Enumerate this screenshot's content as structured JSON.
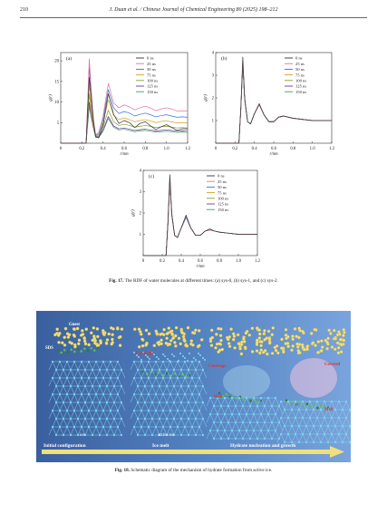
{
  "header": {
    "page_number": "210",
    "journal": "J. Duan et al. / Chinese Journal of Chemical Engineering 80 (2025) 198–212"
  },
  "legend_labels": [
    "0 ns",
    "25 ns",
    "50 ns",
    "75 ns",
    "100 ns",
    "125 ns",
    "150 ns"
  ],
  "series_colors": [
    "#333333",
    "#e0709a",
    "#3a6fd8",
    "#d4a020",
    "#8a9a3a",
    "#6a3a9a",
    "#3aa060"
  ],
  "figure17": {
    "caption_label": "Fig. 17.",
    "caption_text": "The RDF of water molecules at different times: (a) sys-0, (b) sys-1, and (c) sys-2."
  },
  "figure18": {
    "caption_label": "Fig. 18.",
    "caption_text": "Schematic diagram of the mechanism of hydrate formation from active ice.",
    "labels": {
      "guest": "Guest",
      "sds": "SDS",
      "ice": "ice",
      "active_ice": "active ice",
      "coverage": "Coverage",
      "covered": "Covered",
      "melt": "Melt",
      "stage1": "Initial configuration",
      "stage2": "Ice melt",
      "stage3": "Hydrate nucleation and growth"
    }
  },
  "chart_data": [
    {
      "type": "line",
      "panel": "(a)",
      "xlabel": "r/nm",
      "ylabel": "g(r)",
      "xlim": [
        0,
        1.2
      ],
      "ylim": [
        0,
        22
      ],
      "xticks": [
        "0",
        "0.2",
        "0.4",
        "0.6",
        "0.8",
        "1.0",
        "1.2"
      ],
      "yticks": [
        "5",
        "10",
        "15",
        "20"
      ],
      "x": [
        0,
        0.24,
        0.27,
        0.29,
        0.31,
        0.33,
        0.36,
        0.4,
        0.45,
        0.5,
        0.55,
        0.6,
        0.65,
        0.7,
        0.75,
        0.8,
        0.85,
        0.9,
        0.95,
        1.0,
        1.05,
        1.1,
        1.15,
        1.2
      ],
      "series": [
        {
          "name": "0 ns",
          "values": [
            0,
            0,
            16.0,
            10.5,
            5.2,
            1.5,
            1.3,
            4.3,
            12.0,
            7.0,
            4.8,
            5.5,
            5.0,
            3.8,
            4.8,
            5.2,
            4.2,
            3.3,
            4.0,
            4.5,
            3.8,
            3.1,
            3.5,
            3.5
          ]
        },
        {
          "name": "25 ns",
          "values": [
            0,
            0,
            20.5,
            12.5,
            5.8,
            2.1,
            2.6,
            6.5,
            14.5,
            9.8,
            8.6,
            9.3,
            8.8,
            8.1,
            8.6,
            9.0,
            8.5,
            7.9,
            8.3,
            8.6,
            8.3,
            7.8,
            7.9,
            7.8
          ]
        },
        {
          "name": "50 ns",
          "values": [
            0,
            0,
            18.5,
            11.5,
            5.5,
            1.9,
            2.2,
            5.6,
            13.0,
            8.6,
            7.2,
            7.7,
            7.3,
            6.6,
            7.0,
            7.3,
            6.9,
            6.4,
            6.7,
            6.9,
            6.6,
            6.3,
            6.4,
            6.3
          ]
        },
        {
          "name": "75 ns",
          "values": [
            0,
            0,
            14.5,
            9.0,
            4.7,
            1.8,
            1.9,
            4.8,
            10.5,
            6.8,
            5.7,
            6.1,
            5.7,
            5.2,
            5.5,
            5.7,
            5.4,
            5.0,
            5.3,
            5.4,
            5.2,
            4.9,
            5.0,
            4.9
          ]
        },
        {
          "name": "100 ns",
          "values": [
            0,
            0,
            12.0,
            7.5,
            4.2,
            1.7,
            1.7,
            3.9,
            8.0,
            5.2,
            4.3,
            4.6,
            4.3,
            3.9,
            4.1,
            4.3,
            4.1,
            3.8,
            4.0,
            4.1,
            3.9,
            3.7,
            3.8,
            3.7
          ]
        },
        {
          "name": "125 ns",
          "values": [
            0,
            0,
            10.0,
            6.5,
            3.8,
            1.6,
            1.5,
            3.2,
            6.5,
            4.2,
            3.5,
            3.7,
            3.4,
            3.1,
            3.3,
            3.4,
            3.2,
            3.0,
            3.1,
            3.2,
            3.1,
            2.9,
            3.0,
            2.9
          ]
        },
        {
          "name": "150 ns",
          "values": [
            0,
            0,
            9.0,
            6.0,
            3.5,
            1.5,
            1.4,
            2.9,
            6.0,
            3.9,
            3.2,
            3.4,
            3.1,
            2.8,
            3.0,
            3.1,
            2.9,
            2.7,
            2.8,
            2.9,
            2.8,
            2.6,
            2.7,
            2.6
          ]
        }
      ]
    },
    {
      "type": "line",
      "panel": "(b)",
      "xlabel": "r/nm",
      "ylabel": "g(r)",
      "xlim": [
        0,
        1.2
      ],
      "ylim": [
        0,
        4
      ],
      "xticks": [
        "0",
        "0.2",
        "0.4",
        "0.6",
        "0.8",
        "1.0",
        "1.2"
      ],
      "yticks": [
        "1",
        "2",
        "3",
        "4"
      ],
      "x": [
        0,
        0.24,
        0.26,
        0.28,
        0.3,
        0.33,
        0.36,
        0.4,
        0.45,
        0.5,
        0.55,
        0.6,
        0.65,
        0.7,
        0.75,
        0.8,
        0.9,
        1.0,
        1.1,
        1.2
      ],
      "series": [
        {
          "name": "0 ns",
          "values": [
            0,
            0,
            1.6,
            3.8,
            2.0,
            0.95,
            0.85,
            1.3,
            1.75,
            1.25,
            0.95,
            0.95,
            1.15,
            1.2,
            1.15,
            1.1,
            1.05,
            1.0,
            1.0,
            1.0
          ]
        },
        {
          "name": "25 ns",
          "values": [
            0,
            0,
            1.5,
            3.6,
            1.95,
            0.95,
            0.85,
            1.3,
            1.7,
            1.25,
            0.95,
            0.95,
            1.15,
            1.2,
            1.15,
            1.1,
            1.05,
            1.0,
            1.0,
            1.0
          ]
        },
        {
          "name": "50 ns",
          "values": [
            0,
            0,
            1.5,
            3.5,
            1.9,
            0.95,
            0.85,
            1.3,
            1.7,
            1.25,
            0.95,
            0.95,
            1.15,
            1.2,
            1.15,
            1.1,
            1.05,
            1.0,
            1.0,
            1.0
          ]
        },
        {
          "name": "75 ns",
          "values": [
            0,
            0,
            1.5,
            3.5,
            1.9,
            0.95,
            0.85,
            1.3,
            1.7,
            1.25,
            0.95,
            0.95,
            1.15,
            1.2,
            1.15,
            1.1,
            1.05,
            1.0,
            1.0,
            1.0
          ]
        },
        {
          "name": "100 ns",
          "values": [
            0,
            0,
            1.5,
            3.5,
            1.9,
            0.95,
            0.85,
            1.3,
            1.7,
            1.25,
            0.95,
            0.95,
            1.15,
            1.2,
            1.15,
            1.1,
            1.05,
            1.0,
            1.0,
            1.0
          ]
        },
        {
          "name": "125 ns",
          "values": [
            0,
            0,
            1.5,
            3.5,
            1.9,
            0.95,
            0.85,
            1.3,
            1.7,
            1.25,
            0.95,
            0.95,
            1.15,
            1.2,
            1.15,
            1.1,
            1.05,
            1.0,
            1.0,
            1.0
          ]
        },
        {
          "name": "150 ns",
          "values": [
            0,
            0,
            1.5,
            3.5,
            1.9,
            0.95,
            0.85,
            1.3,
            1.7,
            1.25,
            0.95,
            0.95,
            1.15,
            1.2,
            1.15,
            1.1,
            1.05,
            1.0,
            1.0,
            1.0
          ]
        }
      ]
    },
    {
      "type": "line",
      "panel": "(c)",
      "xlabel": "r/nm",
      "ylabel": "g(r)",
      "xlim": [
        0,
        1.2
      ],
      "ylim": [
        0,
        4
      ],
      "xticks": [
        "0",
        "0.2",
        "0.4",
        "0.6",
        "0.8",
        "1.0",
        "1.2"
      ],
      "yticks": [
        "1",
        "2",
        "3",
        "4"
      ],
      "x": [
        0,
        0.24,
        0.26,
        0.28,
        0.3,
        0.33,
        0.36,
        0.4,
        0.45,
        0.5,
        0.55,
        0.6,
        0.65,
        0.7,
        0.75,
        0.8,
        0.9,
        1.0,
        1.1,
        1.2
      ],
      "series": [
        {
          "name": "0 ns",
          "values": [
            0,
            0,
            1.6,
            3.8,
            2.0,
            0.95,
            0.85,
            1.3,
            1.9,
            1.3,
            0.95,
            0.95,
            1.15,
            1.25,
            1.15,
            1.1,
            1.05,
            1.0,
            1.0,
            1.0
          ]
        },
        {
          "name": "25 ns",
          "values": [
            0,
            0,
            1.5,
            3.6,
            1.95,
            0.95,
            0.85,
            1.3,
            1.85,
            1.3,
            0.95,
            0.95,
            1.15,
            1.2,
            1.15,
            1.1,
            1.05,
            1.0,
            1.0,
            1.0
          ]
        },
        {
          "name": "50 ns",
          "values": [
            0,
            0,
            1.5,
            3.5,
            1.9,
            0.95,
            0.85,
            1.3,
            1.8,
            1.3,
            0.95,
            0.95,
            1.15,
            1.2,
            1.15,
            1.1,
            1.05,
            1.0,
            1.0,
            1.0
          ]
        },
        {
          "name": "75 ns",
          "values": [
            0,
            0,
            1.5,
            3.5,
            1.9,
            0.95,
            0.85,
            1.3,
            1.8,
            1.3,
            0.95,
            0.95,
            1.15,
            1.2,
            1.15,
            1.1,
            1.05,
            1.0,
            1.0,
            1.0
          ]
        },
        {
          "name": "100 ns",
          "values": [
            0,
            0,
            1.5,
            3.5,
            1.9,
            0.95,
            0.85,
            1.3,
            1.8,
            1.3,
            0.95,
            0.95,
            1.15,
            1.2,
            1.15,
            1.1,
            1.05,
            1.0,
            1.0,
            1.0
          ]
        },
        {
          "name": "125 ns",
          "values": [
            0,
            0,
            1.5,
            3.5,
            1.9,
            0.95,
            0.85,
            1.3,
            1.8,
            1.3,
            0.95,
            0.95,
            1.15,
            1.2,
            1.15,
            1.1,
            1.05,
            1.0,
            1.0,
            1.0
          ]
        },
        {
          "name": "150 ns",
          "values": [
            0,
            0,
            1.5,
            3.5,
            1.9,
            0.95,
            0.85,
            1.3,
            1.8,
            1.3,
            0.95,
            0.95,
            1.15,
            1.2,
            1.15,
            1.1,
            1.05,
            1.0,
            1.0,
            1.0
          ]
        }
      ]
    }
  ]
}
